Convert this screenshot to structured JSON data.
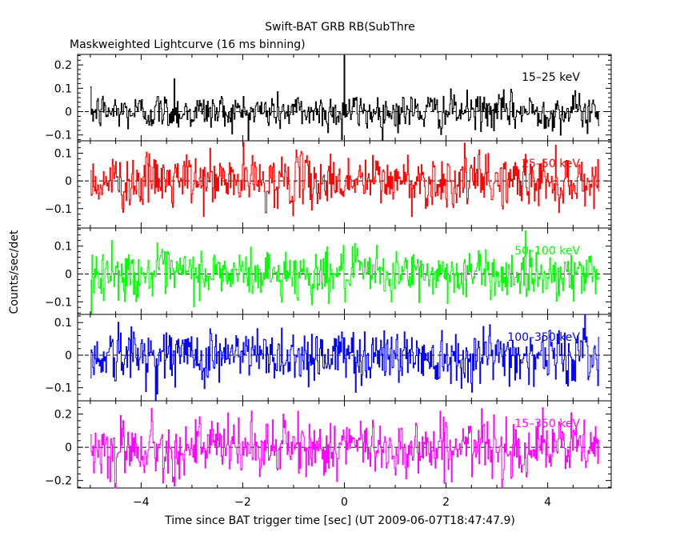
{
  "chart_data": {
    "type": "line",
    "title": "Swift-BAT GRB RB(SubThre",
    "subtitle": "Maskweighted Lightcurve (16 ms binning)",
    "xlabel": "Time since BAT trigger time [sec] (UT 2009-06-07T18:47:47.9)",
    "ylabel": "Counts/sec/det",
    "xlim": [
      -5.25,
      5.25
    ],
    "x_ticks": [
      -4,
      -2,
      0,
      2,
      4
    ],
    "x_tick_labels": [
      "−4",
      "−2",
      "0",
      "2",
      "4"
    ],
    "x_data_range": [
      -5.0,
      5.0
    ],
    "bin_width_sec": 0.016,
    "grid": false,
    "zero_line": "dashed",
    "panels": [
      {
        "name": "15–25 keV",
        "color": "#000000",
        "ylim": [
          -0.125,
          0.245
        ],
        "y_ticks": [
          -0.1,
          0,
          0.1,
          0.2
        ],
        "y_tick_labels": [
          "−0.1",
          "0",
          "0.1",
          "0.2"
        ],
        "noise_sigma": 0.045,
        "spikes": [
          {
            "x": 0.0,
            "y": 0.24
          },
          {
            "x": -3.35,
            "y": 0.14
          },
          {
            "x": -0.05,
            "y": -0.12
          }
        ]
      },
      {
        "name": "25–50 keV",
        "color": "#ff0000",
        "ylim": [
          -0.17,
          0.145
        ],
        "y_ticks": [
          -0.1,
          0,
          0.1
        ],
        "y_tick_labels": [
          "−0.1",
          "0",
          "0.1"
        ],
        "noise_sigma": 0.055,
        "spikes": []
      },
      {
        "name": "50–100 keV",
        "color": "#00ff00",
        "ylim": [
          -0.145,
          0.165
        ],
        "y_ticks": [
          -0.1,
          0,
          0.1
        ],
        "y_tick_labels": [
          "−0.1",
          "0",
          "0.1"
        ],
        "noise_sigma": 0.05,
        "spikes": []
      },
      {
        "name": "100–350 keV",
        "color": "#0000ff",
        "ylim": [
          -0.14,
          0.125
        ],
        "y_ticks": [
          -0.1,
          0,
          0.1
        ],
        "y_tick_labels": [
          "−0.1",
          "0",
          "0.1"
        ],
        "noise_sigma": 0.05,
        "spikes": []
      },
      {
        "name": "15–350 keV",
        "color": "#ff00ff",
        "ylim": [
          -0.245,
          0.28
        ],
        "y_ticks": [
          -0.2,
          0,
          0.2
        ],
        "y_tick_labels": [
          "−0.2",
          "0",
          "0.2"
        ],
        "noise_sigma": 0.1,
        "spikes": []
      }
    ]
  }
}
